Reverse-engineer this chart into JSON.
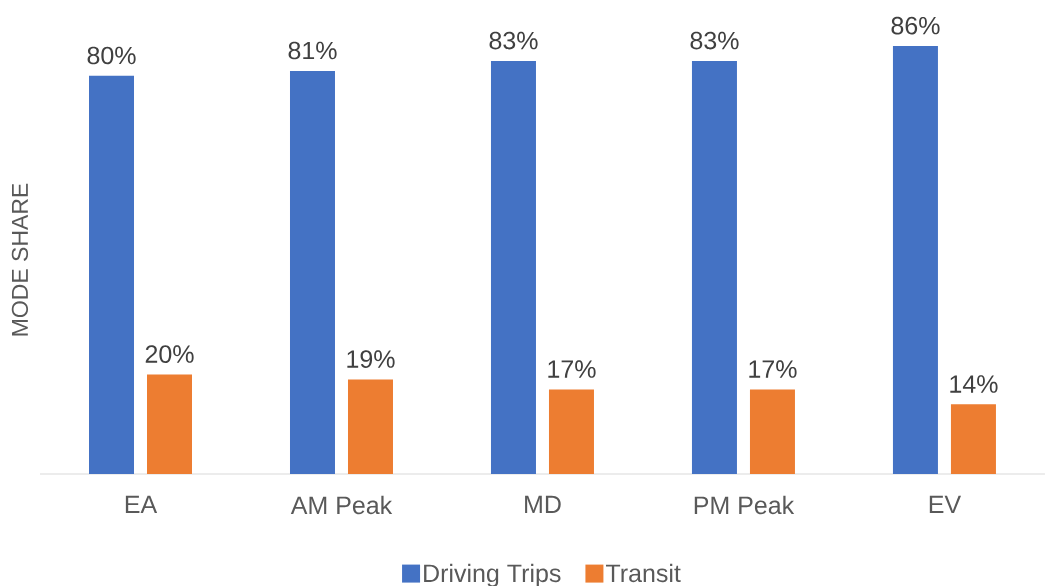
{
  "chart_data": {
    "type": "bar",
    "ylabel": "MODE SHARE",
    "categories": [
      "EA",
      "AM Peak",
      "MD",
      "PM Peak",
      "EV"
    ],
    "series": [
      {
        "name": "Driving Trips",
        "color": "#4472c4",
        "values": [
          80,
          81,
          83,
          83,
          86
        ],
        "value_labels": [
          "80%",
          "81%",
          "83%",
          "83%",
          "86%"
        ]
      },
      {
        "name": "Transit",
        "color": "#ed7d31",
        "values": [
          20,
          19,
          17,
          17,
          14
        ],
        "value_labels": [
          "20%",
          "19%",
          "17%",
          "17%",
          "14%"
        ]
      }
    ],
    "legend": "bottom",
    "tick_labels": "x"
  }
}
